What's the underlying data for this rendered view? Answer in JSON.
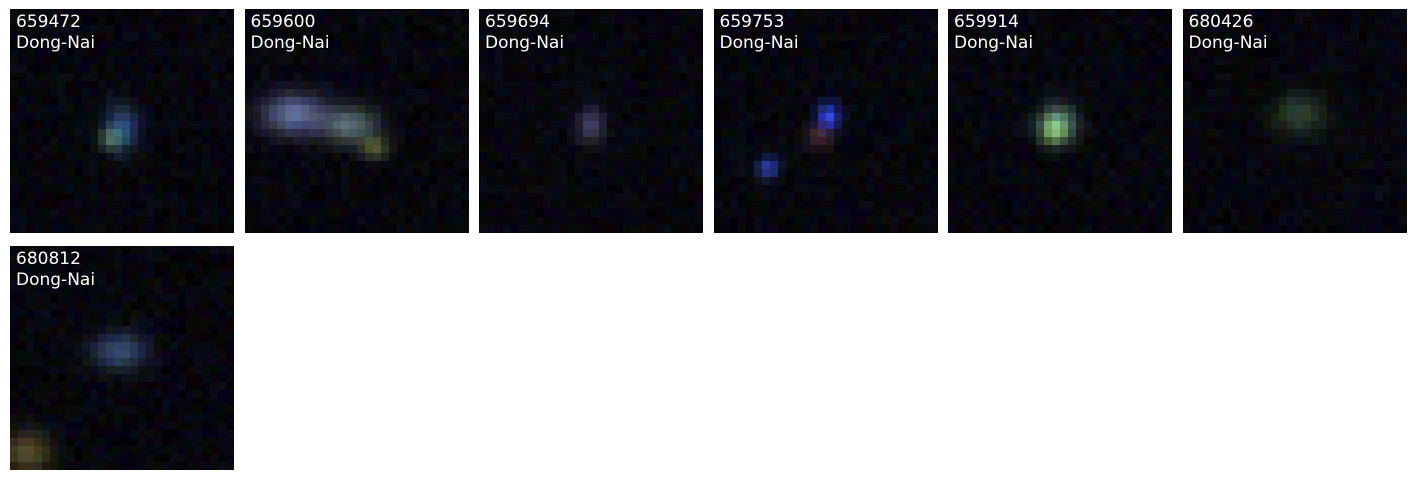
{
  "panels": [
    {
      "id": "659472",
      "location": "Dong-Nai"
    },
    {
      "id": "659600",
      "location": "Dong-Nai"
    },
    {
      "id": "659694",
      "location": "Dong-Nai"
    },
    {
      "id": "659753",
      "location": "Dong-Nai"
    },
    {
      "id": "659914",
      "location": "Dong-Nai"
    },
    {
      "id": "680426",
      "location": "Dong-Nai"
    },
    {
      "id": "680812",
      "location": "Dong-Nai"
    }
  ],
  "colors": {
    "background": "#ffffff",
    "tile_background": "#000000",
    "label_text": "#ffffff"
  }
}
